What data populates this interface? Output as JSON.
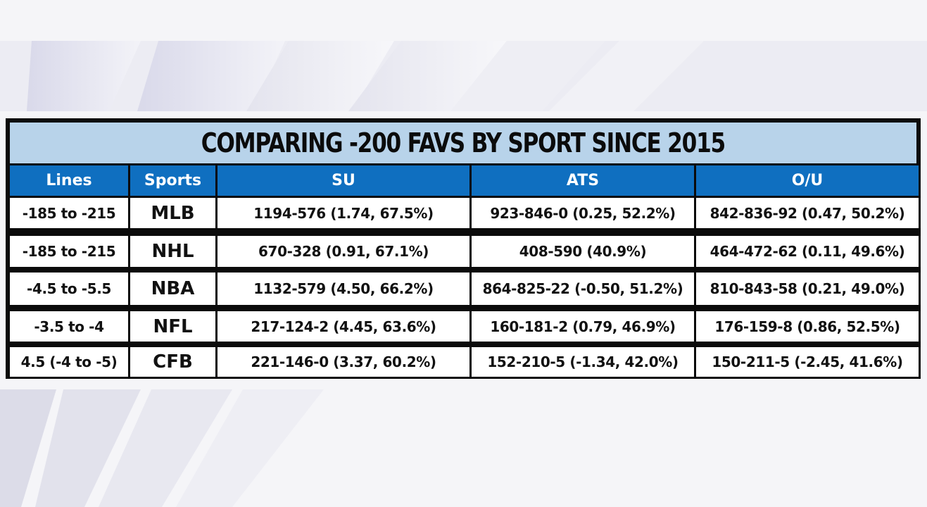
{
  "title": "COMPARING -200 FAVS BY SPORT SINCE 2015",
  "headers": {
    "lines": "Lines",
    "sports": "Sports",
    "su": "SU",
    "ats": "ATS",
    "ou": "O/U"
  },
  "rows": [
    {
      "lines": "-185 to -215",
      "sport": "MLB",
      "su": "1194-576 (1.74, 67.5%)",
      "ats": "923-846-0 (0.25, 52.2%)",
      "ou": "842-836-92 (0.47, 50.2%)"
    },
    {
      "lines": "-185 to -215",
      "sport": "NHL",
      "su": "670-328 (0.91, 67.1%)",
      "ats": "408-590 (40.9%)",
      "ou": "464-472-62 (0.11, 49.6%)"
    },
    {
      "lines": "-4.5 to -5.5",
      "sport": "NBA",
      "su": "1132-579 (4.50, 66.2%)",
      "ats": "864-825-22 (-0.50, 51.2%)",
      "ou": "810-843-58 (0.21, 49.0%)"
    },
    {
      "lines": "-3.5 to -4",
      "sport": "NFL",
      "su": "217-124-2 (4.45, 63.6%)",
      "ats": "160-181-2 (0.79, 46.9%)",
      "ou": "176-159-8 (0.86, 52.5%)"
    },
    {
      "lines": "4.5 (-4 to -5)",
      "sport": "CFB",
      "su": "221-146-0 (3.37, 60.2%)",
      "ats": "152-210-5 (-1.34, 42.0%)",
      "ou": "150-211-5 (-2.45, 41.6%)"
    }
  ],
  "chart_data": {
    "type": "table",
    "title": "COMPARING -200 FAVS BY SPORT SINCE 2015",
    "columns": [
      "Lines",
      "Sports",
      "SU",
      "ATS",
      "O/U"
    ],
    "rows": [
      [
        "-185 to -215",
        "MLB",
        "1194-576 (1.74, 67.5%)",
        "923-846-0 (0.25, 52.2%)",
        "842-836-92 (0.47, 50.2%)"
      ],
      [
        "-185 to -215",
        "NHL",
        "670-328 (0.91, 67.1%)",
        "408-590 (40.9%)",
        "464-472-62 (0.11, 49.6%)"
      ],
      [
        "-4.5 to -5.5",
        "NBA",
        "1132-579 (4.50, 66.2%)",
        "864-825-22 (-0.50, 51.2%)",
        "810-843-58 (0.21, 49.0%)"
      ],
      [
        "-3.5 to -4",
        "NFL",
        "217-124-2 (4.45, 63.6%)",
        "160-181-2 (0.79, 46.9%)",
        "176-159-8 (0.86, 52.5%)"
      ],
      [
        "4.5 (-4 to -5)",
        "CFB",
        "221-146-0 (3.37, 60.2%)",
        "152-210-5 (-1.34, 42.0%)",
        "150-211-5 (-2.45, 41.6%)"
      ]
    ]
  },
  "colors": {
    "title_background": "#b8d3ea",
    "header_background": "#0f6fc0",
    "header_text": "#ffffff",
    "border": "#0b0b0b",
    "cell_background": "#ffffff"
  }
}
